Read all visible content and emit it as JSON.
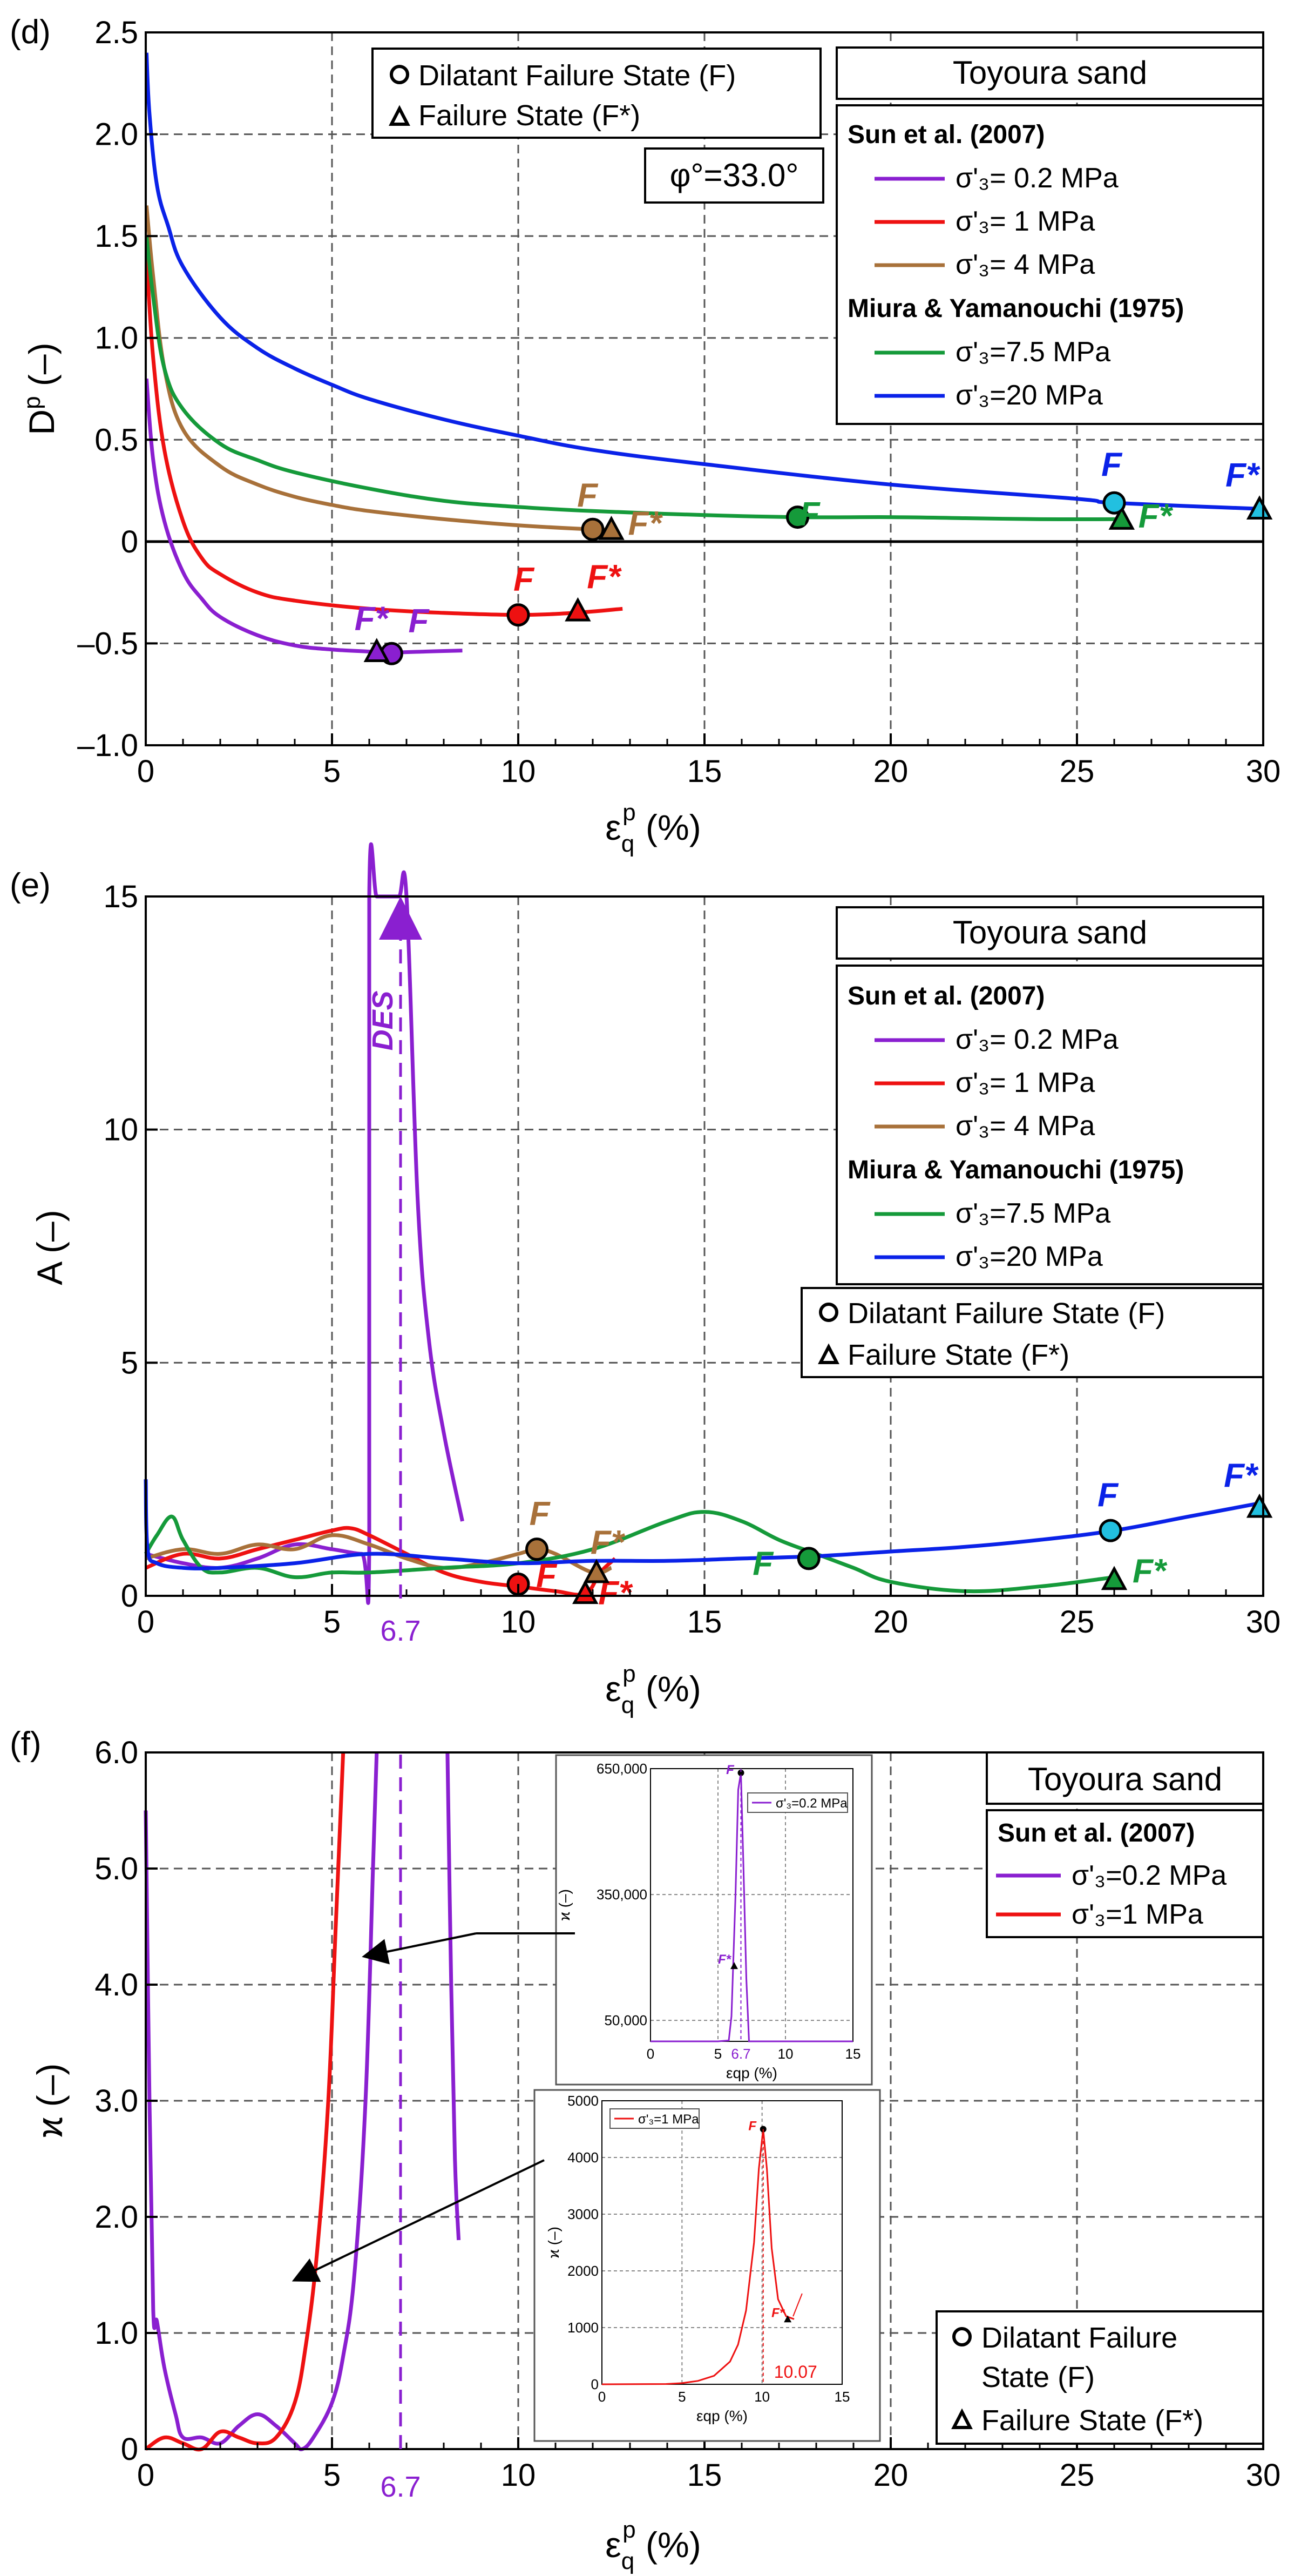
{
  "colors": {
    "s02": "#8a1fd0",
    "s1": "#ee1111",
    "s4": "#a8713a",
    "s75": "#159a3a",
    "s20": "#0a22e8",
    "cyan": "#22c0e0"
  },
  "legend": {
    "material": "Toyoura sand",
    "group1": "Sun et al. (2007)",
    "group2": "Miura & Yamanouchi (1975)",
    "s02": "σ'₃= 0.2 MPa",
    "s1": "σ'₃= 1 MPa",
    "s4": "σ'₃= 4 MPa",
    "s75": "σ'₃=7.5 MPa",
    "s20": "σ'₃=20 MPa",
    "s02b": "σ'₃=0.2 MPa",
    "s1b": "σ'₃=1 MPa",
    "dil": "Dilatant Failure State (F)",
    "fail": "Failure State (F*)",
    "dil_a": "Dilatant Failure",
    "dil_b": "State (F)",
    "phi": "φ°=33.0°"
  },
  "marks": {
    "F": "F",
    "Fs": "F*",
    "des": "DES",
    "v67": "6.7",
    "v1007": "10.07"
  },
  "chart_data": [
    {
      "panel": "(d)",
      "type": "line",
      "xlabel": "εqp (%)",
      "ylabel": "Dp (–)",
      "xlim": [
        0,
        30
      ],
      "ylim": [
        -1.0,
        2.5
      ],
      "xticks": [
        "0",
        "5",
        "10",
        "15",
        "20",
        "25",
        "30"
      ],
      "yticks": [
        "–1.0",
        "–0.5",
        "0",
        "0.5",
        "1.0",
        "1.5",
        "2.0",
        "2.5"
      ],
      "series": [
        {
          "name": "σ'₃= 0.2 MPa",
          "x": [
            0.02,
            0.2,
            0.5,
            1,
            1.5,
            2,
            3,
            4,
            5,
            6,
            6.5,
            7.5,
            8.5
          ],
          "values": [
            0.8,
            0.4,
            0.1,
            -0.15,
            -0.28,
            -0.37,
            -0.46,
            -0.51,
            -0.53,
            -0.54,
            -0.545,
            -0.54,
            -0.535
          ]
        },
        {
          "name": "σ'₃= 1 MPa",
          "x": [
            0.02,
            0.2,
            0.5,
            1,
            1.5,
            2,
            3,
            4,
            6,
            8,
            10,
            11.5,
            12.8
          ],
          "values": [
            1.4,
            0.9,
            0.45,
            0.1,
            -0.08,
            -0.16,
            -0.25,
            -0.29,
            -0.33,
            -0.35,
            -0.36,
            -0.35,
            -0.33
          ]
        },
        {
          "name": "σ'₃= 4 MPa",
          "x": [
            0.02,
            0.2,
            0.5,
            1,
            2,
            3,
            4,
            5,
            6,
            8,
            10,
            12,
            12.5
          ],
          "values": [
            1.65,
            1.3,
            0.85,
            0.55,
            0.37,
            0.28,
            0.22,
            0.18,
            0.15,
            0.11,
            0.08,
            0.06,
            0.06
          ]
        },
        {
          "name": "σ'₃=7.5 MPa",
          "x": [
            0.02,
            0.2,
            0.5,
            1,
            2,
            3,
            4,
            6,
            8,
            10,
            12,
            15,
            17.5,
            20,
            22,
            24,
            26,
            26.3
          ],
          "values": [
            1.5,
            1.2,
            0.85,
            0.65,
            0.48,
            0.4,
            0.34,
            0.26,
            0.2,
            0.17,
            0.15,
            0.13,
            0.12,
            0.12,
            0.115,
            0.11,
            0.11,
            0.11
          ]
        },
        {
          "name": "σ'₃=20 MPa",
          "x": [
            0.02,
            0.1,
            0.3,
            0.6,
            1,
            2,
            3,
            4,
            5,
            6,
            8,
            10,
            12,
            15,
            20,
            25,
            26,
            30
          ],
          "values": [
            2.4,
            2.1,
            1.75,
            1.55,
            1.35,
            1.1,
            0.95,
            0.85,
            0.77,
            0.7,
            0.6,
            0.52,
            0.45,
            0.38,
            0.28,
            0.21,
            0.19,
            0.16
          ]
        }
      ],
      "points": [
        {
          "series": "σ'₃= 0.2 MPa",
          "type": "F",
          "x": 6.6,
          "y": -0.55
        },
        {
          "series": "σ'₃= 0.2 MPa",
          "type": "F*",
          "x": 6.2,
          "y": -0.54
        },
        {
          "series": "σ'₃= 1 MPa",
          "type": "F",
          "x": 10.0,
          "y": -0.36
        },
        {
          "series": "σ'₃= 1 MPa",
          "type": "F*",
          "x": 11.6,
          "y": -0.34
        },
        {
          "series": "σ'₃= 4 MPa",
          "type": "F",
          "x": 12.0,
          "y": 0.06
        },
        {
          "series": "σ'₃= 4 MPa",
          "type": "F*",
          "x": 12.5,
          "y": 0.06
        },
        {
          "series": "σ'₃=7.5 MPa",
          "type": "F",
          "x": 17.5,
          "y": 0.12
        },
        {
          "series": "σ'₃=7.5 MPa",
          "type": "F*",
          "x": 26.2,
          "y": 0.11
        },
        {
          "series": "σ'₃=20 MPa",
          "type": "F",
          "x": 26.0,
          "y": 0.19
        },
        {
          "series": "σ'₃=20 MPa",
          "type": "F*",
          "x": 29.9,
          "y": 0.16
        }
      ],
      "annotation": "φ°=33.0°"
    },
    {
      "panel": "(e)",
      "type": "line",
      "xlabel": "εqp (%)",
      "ylabel": "A (–)",
      "xlim": [
        0,
        30
      ],
      "ylim": [
        0,
        15
      ],
      "xticks": [
        "0",
        "5",
        "10",
        "15",
        "20",
        "25",
        "30"
      ],
      "yticks": [
        "0",
        "5",
        "10",
        "15"
      ],
      "series": [
        {
          "name": "σ'₃= 0.2 MPa",
          "x": [
            0,
            1,
            2,
            3,
            4,
            5,
            5.8,
            6.0,
            6.0,
            6.2,
            6.5,
            6.8,
            7.0,
            7.3,
            7.6,
            8.0,
            8.5
          ],
          "values": [
            0.9,
            0.7,
            0.6,
            0.8,
            1.1,
            1.0,
            0.9,
            1.0,
            15,
            15,
            15,
            15,
            15,
            8.5,
            5.5,
            3.5,
            1.6
          ]
        },
        {
          "name": "σ'₃= 1 MPa",
          "x": [
            0,
            1,
            2,
            3,
            4,
            5,
            5.5,
            6,
            7,
            8,
            9,
            10,
            11,
            11.8,
            12.2,
            12.6
          ],
          "values": [
            0.6,
            0.9,
            0.8,
            1.0,
            1.2,
            1.4,
            1.45,
            1.3,
            0.9,
            0.5,
            0.3,
            0.2,
            0.1,
            0.05,
            0.5,
            0.8
          ]
        },
        {
          "name": "σ'₃= 4 MPa",
          "x": [
            0,
            1,
            2,
            3,
            4,
            5,
            6,
            7,
            8,
            9,
            10,
            10.5,
            11,
            12,
            12.5
          ],
          "values": [
            0.8,
            1.0,
            0.9,
            1.1,
            1.0,
            1.3,
            1.1,
            0.8,
            0.6,
            0.7,
            0.9,
            1.0,
            0.9,
            0.5,
            0.6
          ]
        },
        {
          "name": "σ'₃=7.5 MPa",
          "x": [
            0,
            0.3,
            0.7,
            1,
            1.5,
            2,
            3,
            4,
            5,
            6,
            8,
            10,
            12,
            14,
            15,
            16,
            17,
            18,
            19,
            20,
            22,
            24,
            26
          ],
          "values": [
            0.9,
            1.3,
            1.7,
            1.2,
            0.6,
            0.5,
            0.6,
            0.4,
            0.5,
            0.5,
            0.6,
            0.7,
            1.0,
            1.6,
            1.8,
            1.6,
            1.2,
            0.9,
            0.6,
            0.3,
            0.1,
            0.2,
            0.4
          ]
        },
        {
          "name": "σ'₃=20 MPa",
          "x": [
            0,
            0.05,
            0.3,
            1,
            2,
            4,
            6,
            8,
            10,
            12,
            14,
            16,
            18,
            20,
            22,
            24,
            26,
            28,
            30
          ],
          "values": [
            2.5,
            1.0,
            0.7,
            0.6,
            0.6,
            0.7,
            0.9,
            0.8,
            0.7,
            0.75,
            0.75,
            0.8,
            0.85,
            0.95,
            1.05,
            1.2,
            1.4,
            1.7,
            2.0
          ]
        }
      ],
      "points": [
        {
          "series": "σ'₃= 1 MPa",
          "type": "F",
          "x": 10.0,
          "y": 0.25
        },
        {
          "series": "σ'₃= 1 MPa",
          "type": "F*",
          "x": 11.8,
          "y": 0.05
        },
        {
          "series": "σ'₃= 4 MPa",
          "type": "F",
          "x": 10.5,
          "y": 1.0
        },
        {
          "series": "σ'₃= 4 MPa",
          "type": "F*",
          "x": 12.1,
          "y": 0.5
        },
        {
          "series": "σ'₃=7.5 MPa",
          "type": "F",
          "x": 17.8,
          "y": 0.8
        },
        {
          "series": "σ'₃=7.5 MPa",
          "type": "F*",
          "x": 26.0,
          "y": 0.35
        },
        {
          "series": "σ'₃=20 MPa",
          "type": "F",
          "x": 25.9,
          "y": 1.4
        },
        {
          "series": "σ'₃=20 MPa",
          "type": "F*",
          "x": 29.9,
          "y": 1.9
        }
      ],
      "annotations": [
        "DES",
        "6.7"
      ]
    },
    {
      "panel": "(f)",
      "type": "line",
      "xlabel": "εqp (%)",
      "ylabel": "ϰ (–)",
      "xlim": [
        0,
        30
      ],
      "ylim": [
        0,
        6.0
      ],
      "xticks": [
        "0",
        "5",
        "10",
        "15",
        "20",
        "25",
        "30"
      ],
      "yticks": [
        "0",
        "1.0",
        "2.0",
        "3.0",
        "4.0",
        "5.0",
        "6.0"
      ],
      "series": [
        {
          "name": "σ'₃=0.2 MPa",
          "x": [
            0,
            0.1,
            0.2,
            0.3,
            0.5,
            0.8,
            1,
            1.5,
            2,
            2.5,
            3,
            3.5,
            4,
            4.2,
            4.5,
            5,
            5.3,
            5.6,
            5.9,
            6.1,
            6.2
          ],
          "values": [
            5.5,
            3.0,
            1.2,
            1.1,
            0.7,
            0.3,
            0.1,
            0.1,
            0.05,
            0.2,
            0.3,
            0.2,
            0.05,
            0.0,
            0.1,
            0.4,
            0.8,
            1.5,
            3.0,
            5.0,
            6.0
          ]
        },
        {
          "name": "σ'₃=0.2 MPa",
          "x": [
            8.1,
            8.2,
            8.3,
            8.4
          ],
          "values": [
            6.0,
            4.0,
            2.5,
            1.8
          ]
        },
        {
          "name": "σ'₃=1 MPa",
          "x": [
            0,
            0.5,
            1,
            1.5,
            2,
            2.5,
            3,
            3.5,
            4,
            4.3,
            4.6,
            4.9,
            5.1,
            5.3
          ],
          "values": [
            0.0,
            0.1,
            0.05,
            0.0,
            0.15,
            0.1,
            0.05,
            0.1,
            0.4,
            0.9,
            1.7,
            3.0,
            4.5,
            6.0
          ]
        }
      ],
      "annotations": [
        "6.7"
      ],
      "insets": [
        {
          "type": "line",
          "legend": "σ'₃=0.2 MPa",
          "xlabel": "εqp (%)",
          "ylabel": "ϰ (–)",
          "xlim": [
            0,
            15
          ],
          "ylim": [
            0,
            650000
          ],
          "xticks": [
            "0",
            "5",
            "6.7",
            "10",
            "15"
          ],
          "yticks": [
            "50,000",
            "350,000",
            "650,000"
          ],
          "x": [
            0,
            5,
            5.8,
            6.0,
            6.3,
            6.5,
            6.7,
            6.9,
            7.1,
            7.3,
            8,
            15
          ],
          "values": [
            0,
            0,
            2000,
            60000,
            350000,
            600000,
            640000,
            400000,
            150000,
            0,
            0,
            0
          ],
          "points": [
            {
              "type": "F",
              "x": 6.7,
              "y": 640000
            },
            {
              "type": "F*",
              "x": 6.2,
              "y": 180000
            }
          ]
        },
        {
          "type": "line",
          "legend": "σ'₃=1 MPa",
          "xlabel": "εqp (%)",
          "ylabel": "ϰ (–)",
          "xlim": [
            0,
            15
          ],
          "ylim": [
            0,
            5000
          ],
          "xticks": [
            "0",
            "5",
            "10",
            "15"
          ],
          "yticks": [
            "0",
            "1000",
            "2000",
            "3000",
            "4000",
            "5000"
          ],
          "x": [
            0,
            4,
            5,
            6,
            7,
            8,
            8.5,
            9,
            9.5,
            9.8,
            10.07,
            10.3,
            10.6,
            11,
            11.5,
            12
          ],
          "values": [
            0,
            5,
            20,
            60,
            150,
            400,
            700,
            1300,
            2500,
            3800,
            4500,
            3800,
            2400,
            1500,
            1200,
            1150
          ],
          "points": [
            {
              "type": "F",
              "x": 10.07,
              "y": 4500
            },
            {
              "type": "F*",
              "x": 11.6,
              "y": 1150
            }
          ],
          "annotation": "10.07"
        }
      ]
    }
  ]
}
